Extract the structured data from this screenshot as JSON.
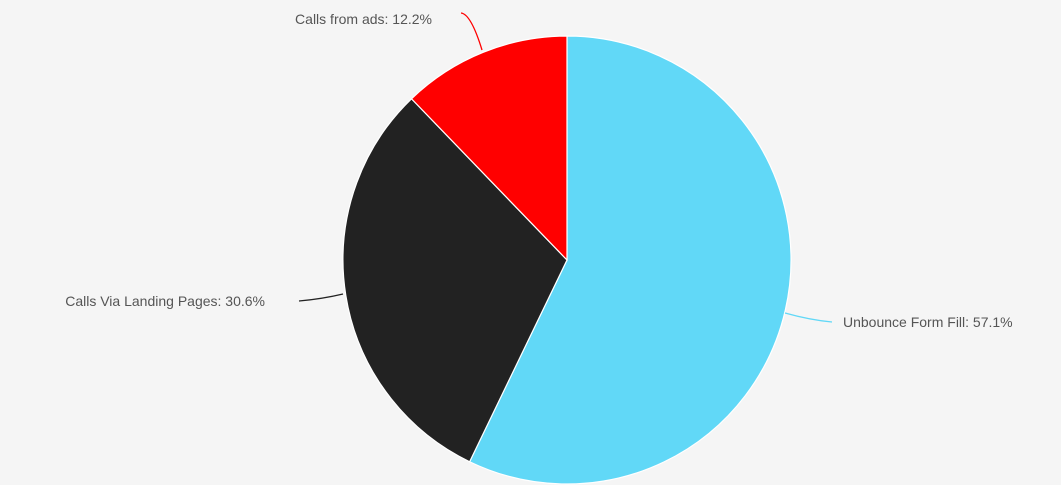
{
  "chart_data": {
    "type": "pie",
    "title": "",
    "start_angle_deg": 0,
    "direction": "clockwise",
    "slices": [
      {
        "label": "Unbounce Form Fill",
        "value": 57.1,
        "display": "Unbounce Form Fill: 57.1%",
        "color": "#61d8f7"
      },
      {
        "label": "Calls Via Landing Pages",
        "value": 30.6,
        "display": "Calls Via Landing Pages: 30.6%",
        "color": "#222222"
      },
      {
        "label": "Calls from ads",
        "value": 12.2,
        "display": "Calls from ads: 12.2%",
        "color": "#ff0000"
      }
    ]
  }
}
